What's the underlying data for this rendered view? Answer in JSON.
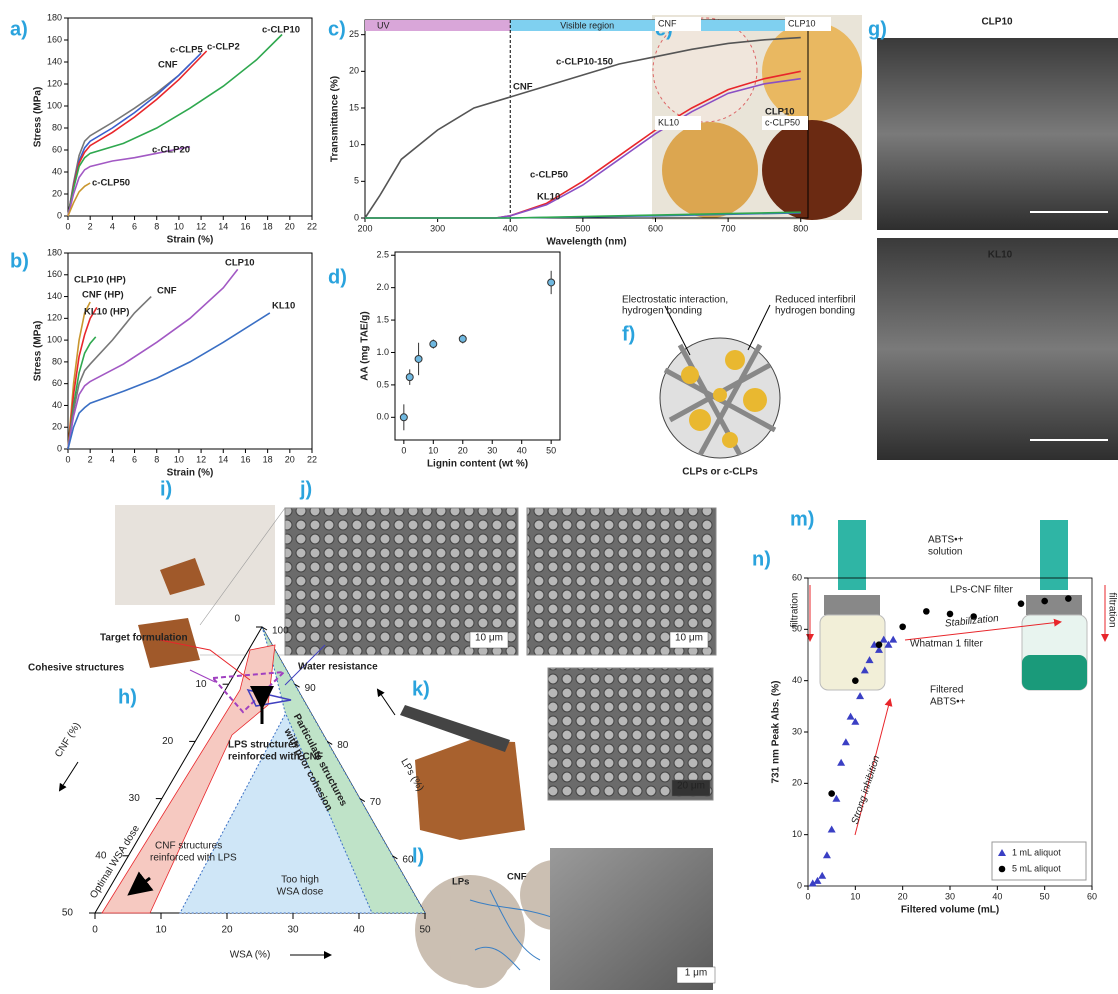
{
  "panel_labels": [
    "a)",
    "b)",
    "c)",
    "d)",
    "e)",
    "f)",
    "g)",
    "h)",
    "i)",
    "j)",
    "k)",
    "l)",
    "m)",
    "n)"
  ],
  "chart_data": [
    {
      "type": "line",
      "x_label": "Strain (%)",
      "y_label": "Stress (MPa)",
      "xlim": [
        0,
        22
      ],
      "xticks": [
        0,
        2,
        4,
        6,
        8,
        10,
        12,
        14,
        16,
        18,
        20,
        22
      ],
      "ylim": [
        0,
        180
      ],
      "yticks": [
        0,
        20,
        40,
        60,
        80,
        100,
        120,
        140,
        160,
        180
      ],
      "series": [
        {
          "name": "CNF",
          "color": "#777777",
          "x": [
            0,
            0.5,
            1,
            1.5,
            2,
            4,
            6,
            8,
            10,
            11
          ],
          "values": [
            0,
            30,
            55,
            68,
            73,
            85,
            98,
            112,
            128,
            138
          ]
        },
        {
          "name": "c-CLP5",
          "color": "#3a5fcd",
          "x": [
            0,
            0.5,
            1,
            1.5,
            2,
            4,
            6,
            8,
            10,
            12
          ],
          "values": [
            0,
            28,
            50,
            62,
            68,
            80,
            94,
            110,
            128,
            148
          ]
        },
        {
          "name": "c-CLP2",
          "color": "#e8262b",
          "x": [
            0,
            0.5,
            1,
            1.5,
            2,
            4,
            6,
            8,
            10,
            12.5
          ],
          "values": [
            0,
            27,
            48,
            58,
            64,
            76,
            90,
            106,
            124,
            150
          ]
        },
        {
          "name": "c-CLP10",
          "color": "#2fa84f",
          "x": [
            0,
            0.5,
            1,
            1.5,
            2,
            5,
            8,
            11,
            14,
            17,
            19.3
          ],
          "values": [
            0,
            25,
            45,
            53,
            57,
            66,
            80,
            98,
            118,
            142,
            165
          ]
        },
        {
          "name": "c-CLP20",
          "color": "#a259c4",
          "x": [
            0,
            0.5,
            1,
            1.5,
            2,
            4,
            6,
            8,
            10,
            11
          ],
          "values": [
            0,
            20,
            35,
            42,
            45,
            50,
            53,
            57,
            61,
            63
          ]
        },
        {
          "name": "c-CLP50",
          "color": "#c9962e",
          "x": [
            0,
            0.5,
            1,
            1.5,
            2
          ],
          "values": [
            0,
            12,
            22,
            27,
            30
          ]
        }
      ]
    },
    {
      "type": "line",
      "x_label": "Strain (%)",
      "y_label": "Stress (MPa)",
      "xlim": [
        0,
        22
      ],
      "xticks": [
        0,
        2,
        4,
        6,
        8,
        10,
        12,
        14,
        16,
        18,
        20,
        22
      ],
      "ylim": [
        0,
        180
      ],
      "yticks": [
        0,
        20,
        40,
        60,
        80,
        100,
        120,
        140,
        160,
        180
      ],
      "series": [
        {
          "name": "CLP10 (HP)",
          "color": "#c9962e",
          "x": [
            0,
            0.5,
            1,
            1.5,
            2
          ],
          "values": [
            0,
            60,
            100,
            125,
            135
          ]
        },
        {
          "name": "CNF (HP)",
          "color": "#e8262b",
          "x": [
            0,
            0.5,
            1,
            1.5,
            2,
            2.6
          ],
          "values": [
            0,
            50,
            85,
            105,
            120,
            130
          ]
        },
        {
          "name": "KL10 (HP)",
          "color": "#2fa84f",
          "x": [
            0,
            0.5,
            1,
            1.5,
            2,
            2.5
          ],
          "values": [
            0,
            40,
            70,
            88,
            97,
            103
          ]
        },
        {
          "name": "CNF",
          "color": "#777777",
          "x": [
            0,
            0.5,
            1,
            1.5,
            2,
            4,
            6,
            7.5
          ],
          "values": [
            0,
            35,
            60,
            72,
            78,
            100,
            125,
            140
          ]
        },
        {
          "name": "CLP10",
          "color": "#a259c4",
          "x": [
            0,
            0.5,
            1,
            1.5,
            2,
            5,
            8,
            11,
            14,
            15.3
          ],
          "values": [
            0,
            30,
            50,
            58,
            62,
            78,
            98,
            120,
            148,
            165
          ]
        },
        {
          "name": "KL10",
          "color": "#3a6fc4",
          "x": [
            0,
            0.5,
            1,
            1.5,
            2,
            5,
            8,
            11,
            14,
            18.2
          ],
          "values": [
            0,
            20,
            33,
            38,
            42,
            53,
            65,
            80,
            98,
            125
          ]
        }
      ]
    },
    {
      "type": "line",
      "x_label": "Wavelength (nm)",
      "y_label": "Transmittance (%)",
      "xlim": [
        200,
        810
      ],
      "xticks": [
        200,
        300,
        400,
        500,
        600,
        700,
        800
      ],
      "ylim": [
        0,
        27
      ],
      "yticks": [
        0,
        5,
        10,
        15,
        20,
        25
      ],
      "regions": [
        "UV",
        "Visible region"
      ],
      "region_boundary": 400,
      "series": [
        {
          "name": "CNF",
          "color": "#555555",
          "x": [
            200,
            220,
            250,
            300,
            350,
            400,
            450,
            500,
            550,
            600,
            650,
            700,
            750,
            800
          ],
          "values": [
            0,
            3,
            8,
            12,
            15,
            16.5,
            18,
            19.5,
            21,
            22,
            23,
            23.8,
            24.3,
            24.6
          ]
        },
        {
          "name": "c-CLP10-150",
          "color": "#e8262b",
          "x": [
            200,
            380,
            400,
            450,
            500,
            550,
            600,
            650,
            700,
            750,
            800
          ],
          "values": [
            0,
            0,
            0.3,
            2,
            5,
            8.5,
            12,
            15,
            17.5,
            19,
            20
          ]
        },
        {
          "name": "CLP10",
          "color": "#8a4fc4",
          "x": [
            200,
            380,
            400,
            450,
            500,
            550,
            600,
            650,
            700,
            750,
            800
          ],
          "values": [
            0,
            0,
            0.3,
            1.8,
            4.5,
            8,
            11.5,
            14.5,
            17,
            18.3,
            19
          ]
        },
        {
          "name": "c-CLP50",
          "color": "#3a6fc4",
          "x": [
            200,
            400,
            500,
            600,
            700,
            800
          ],
          "values": [
            0,
            0,
            0.15,
            0.3,
            0.5,
            0.7
          ]
        },
        {
          "name": "KL10",
          "color": "#2fa84f",
          "x": [
            200,
            400,
            500,
            600,
            700,
            800
          ],
          "values": [
            0,
            0,
            0.2,
            0.4,
            0.6,
            0.8
          ]
        }
      ]
    },
    {
      "type": "errorbar",
      "x_label": "Lignin content (wt %)",
      "y_label": "AA (mg TAE/g)",
      "color": "#6fb8e0",
      "xlim": [
        -3,
        53
      ],
      "xticks": [
        0,
        10,
        20,
        30,
        40,
        50
      ],
      "ylim": [
        -0.35,
        2.55
      ],
      "yticks": [
        0.0,
        0.5,
        1.0,
        1.5,
        2.0,
        2.5
      ],
      "x": [
        0,
        2,
        5,
        10,
        20,
        50
      ],
      "values": [
        0,
        0.62,
        0.9,
        1.13,
        1.21,
        2.08
      ],
      "errors": [
        0.2,
        0.12,
        0.25,
        0.07,
        0.07,
        0.18
      ]
    },
    {
      "type": "scatter",
      "x_label": "Filtered volume (mL)",
      "y_label": "731 nm Peak Abs. (%)",
      "xlim": [
        0,
        60
      ],
      "xticks": [
        0,
        10,
        20,
        30,
        40,
        50,
        60
      ],
      "ylim": [
        0,
        60
      ],
      "yticks": [
        0,
        10,
        20,
        30,
        40,
        50,
        60
      ],
      "legend": "lower right",
      "annotations": [
        "Strong inhibition",
        "Stabilization"
      ],
      "series": [
        {
          "name": "1 mL aliquot",
          "color": "#3a3fc4",
          "marker": "triangle",
          "x": [
            1,
            2,
            3,
            4,
            5,
            6,
            7,
            8,
            9,
            10,
            11,
            12,
            13,
            14,
            15,
            16,
            17,
            18
          ],
          "values": [
            0.5,
            1,
            2,
            6,
            11,
            17,
            24,
            28,
            33,
            32,
            37,
            42,
            44,
            47,
            46,
            48,
            47,
            48
          ]
        },
        {
          "name": "5 mL aliquot",
          "color": "#000000",
          "marker": "circle",
          "x": [
            5,
            10,
            15,
            20,
            25,
            30,
            35,
            45,
            50,
            55
          ],
          "values": [
            18,
            40,
            47,
            50.5,
            53.5,
            53,
            52.5,
            55,
            55.5,
            56
          ]
        }
      ]
    }
  ],
  "photo_labels": {
    "e": [
      "CNF",
      "CLP10",
      "KL10",
      "c-CLP50"
    ],
    "g": [
      "CLP10",
      "KL10"
    ]
  },
  "schematic_f": {
    "labels": [
      "Electrostatic interaction,",
      "hydrogen bonding",
      "Reduced interfibril",
      "hydrogen bonding"
    ],
    "caption": "CLPs or c-CLPs"
  },
  "scale_bars": [
    "10 μm",
    "10 μm",
    "20 μm",
    "1 μm"
  ],
  "panel_l_labels": [
    "LPs",
    "CNF"
  ],
  "panel_m_labels": [
    "ABTS•+",
    "solution",
    "LPs-CNF filter",
    "Whatman 1 filter",
    "Filtered",
    "ABTS•+",
    "filtration",
    "filtration"
  ],
  "ternary": {
    "axis_titles": [
      "CNF (%)",
      "LPs (%)",
      "WSA (%)"
    ],
    "cnf_ticks": [
      0,
      10,
      20,
      30,
      40,
      50
    ],
    "lps_ticks": [
      100,
      90,
      80,
      70,
      60
    ],
    "wsa_ticks": [
      0,
      10,
      20,
      30,
      40,
      50
    ],
    "regions": [
      "Target formulation",
      "Cohesive structures",
      "Water resistance",
      "LPS structures",
      "reinforced with CNF",
      "Particulate structures",
      "with poor cohesion",
      "CNF structures",
      "reinforced with LPS",
      "Optimal WSA dose",
      "Too high",
      "WSA dose"
    ]
  }
}
